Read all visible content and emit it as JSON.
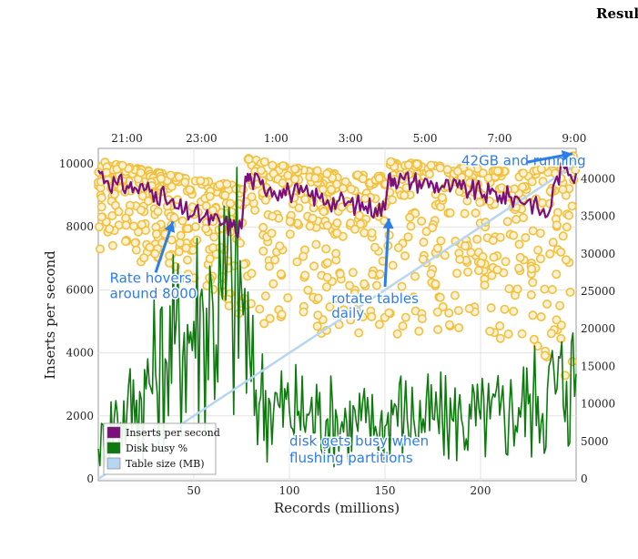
{
  "header": {
    "title": "Results"
  },
  "chart_data": {
    "type": "line",
    "xlabel": "Records (millions)",
    "ylabel": "Inserts per second",
    "xlim": [
      0,
      250
    ],
    "ylim": [
      0,
      10000
    ],
    "y2lim": [
      0,
      42000
    ],
    "x_ticks": [
      50,
      100,
      150,
      200
    ],
    "y_ticks": [
      0,
      2000,
      4000,
      6000,
      8000,
      10000
    ],
    "y2_ticks": [
      0,
      5000,
      10000,
      15000,
      20000,
      25000,
      30000,
      35000,
      40000
    ],
    "top_axis_ticks": [
      {
        "label": "21:00",
        "x": 15
      },
      {
        "label": "23:00",
        "x": 54
      },
      {
        "label": "1:00",
        "x": 93
      },
      {
        "label": "3:00",
        "x": 132
      },
      {
        "label": "5:00",
        "x": 171
      },
      {
        "label": "7:00",
        "x": 210
      },
      {
        "label": "9:00",
        "x": 249
      }
    ],
    "grid": true,
    "legend_position": "bottom-left",
    "series": [
      {
        "name": "Inserts per second",
        "color": "#7b0f7b",
        "axis": "left",
        "x": [
          0,
          5,
          10,
          15,
          20,
          25,
          30,
          35,
          40,
          45,
          50,
          55,
          60,
          65,
          70,
          75,
          77,
          80,
          85,
          90,
          95,
          100,
          105,
          110,
          115,
          120,
          125,
          130,
          135,
          140,
          145,
          150,
          152,
          155,
          160,
          165,
          170,
          175,
          180,
          185,
          190,
          195,
          200,
          205,
          210,
          215,
          220,
          225,
          230,
          235,
          240,
          245,
          250
        ],
        "values": [
          9800,
          9450,
          9350,
          9300,
          9200,
          9200,
          9100,
          8900,
          8600,
          8500,
          8400,
          8300,
          8200,
          8100,
          8000,
          7950,
          9600,
          9500,
          9350,
          9250,
          9150,
          9100,
          9050,
          9000,
          8950,
          8850,
          8800,
          8750,
          8700,
          8650,
          8600,
          8550,
          9650,
          9550,
          9500,
          9450,
          9400,
          9350,
          9300,
          9250,
          9200,
          9150,
          9100,
          9050,
          9000,
          8950,
          8900,
          8850,
          8600,
          8350,
          9600,
          9900,
          9700
        ]
      },
      {
        "name": "Disk busy %",
        "color": "#0c7a0c",
        "axis": "right",
        "x": [
          0,
          5,
          10,
          15,
          20,
          25,
          30,
          35,
          40,
          45,
          50,
          55,
          60,
          65,
          70,
          75,
          80,
          85,
          90,
          95,
          100,
          105,
          110,
          115,
          120,
          125,
          130,
          135,
          140,
          145,
          150,
          155,
          160,
          165,
          170,
          175,
          180,
          185,
          190,
          195,
          200,
          205,
          210,
          215,
          220,
          225,
          230,
          235,
          240,
          245,
          250
        ],
        "values": [
          4000,
          6500,
          8500,
          9000,
          10500,
          12000,
          14000,
          16000,
          18000,
          19500,
          21000,
          22000,
          23000,
          24000,
          24500,
          25000,
          13000,
          11000,
          10000,
          9500,
          9000,
          9000,
          8500,
          8500,
          8000,
          8000,
          7500,
          7500,
          7500,
          7000,
          7000,
          10000,
          8500,
          8000,
          8000,
          8000,
          8000,
          8000,
          8000,
          8000,
          8000,
          8000,
          8500,
          9000,
          9500,
          10000,
          11000,
          12000,
          12000,
          13000,
          14000
        ]
      },
      {
        "name": "Table size (MB)",
        "color": "#b8d6f2",
        "axis": "right",
        "x": [
          0,
          25,
          50,
          75,
          100,
          125,
          150,
          175,
          200,
          225,
          250
        ],
        "values": [
          0,
          4200,
          8400,
          12600,
          16800,
          21000,
          25200,
          29400,
          33600,
          37800,
          42000
        ]
      }
    ],
    "scatter_band": {
      "color": "#f2c03c",
      "x": [
        0,
        25,
        50,
        75,
        77,
        100,
        125,
        150,
        152,
        175,
        200,
        225,
        250
      ],
      "upper": [
        10100,
        9800,
        9500,
        9300,
        10200,
        9900,
        9700,
        9600,
        10100,
        9950,
        9850,
        9700,
        10300
      ],
      "lower": [
        7200,
        6800,
        6000,
        5200,
        4800,
        4600,
        4500,
        4600,
        4500,
        4600,
        4700,
        4000,
        2800
      ]
    },
    "annotations": [
      {
        "text": "42GB and running",
        "x": 190,
        "y": 9950
      },
      {
        "text": "Rate hovers",
        "x": 6,
        "y": 6230
      },
      {
        "text": "around 8000",
        "x": 6,
        "y": 5730
      },
      {
        "text": "rotate tables",
        "x": 122,
        "y": 5580
      },
      {
        "text": "daily",
        "x": 122,
        "y": 5120
      },
      {
        "text": "disk gets busy when",
        "x": 100,
        "y": 1050
      },
      {
        "text": "flushing partitions",
        "x": 100,
        "y": 520
      }
    ],
    "arrows": [
      {
        "from": [
          224,
          10050
        ],
        "to": [
          248,
          10320
        ]
      },
      {
        "from": [
          30,
          6550
        ],
        "to": [
          39,
          8170
        ]
      },
      {
        "from": [
          150,
          6100
        ],
        "to": [
          152,
          8270
        ]
      }
    ]
  }
}
